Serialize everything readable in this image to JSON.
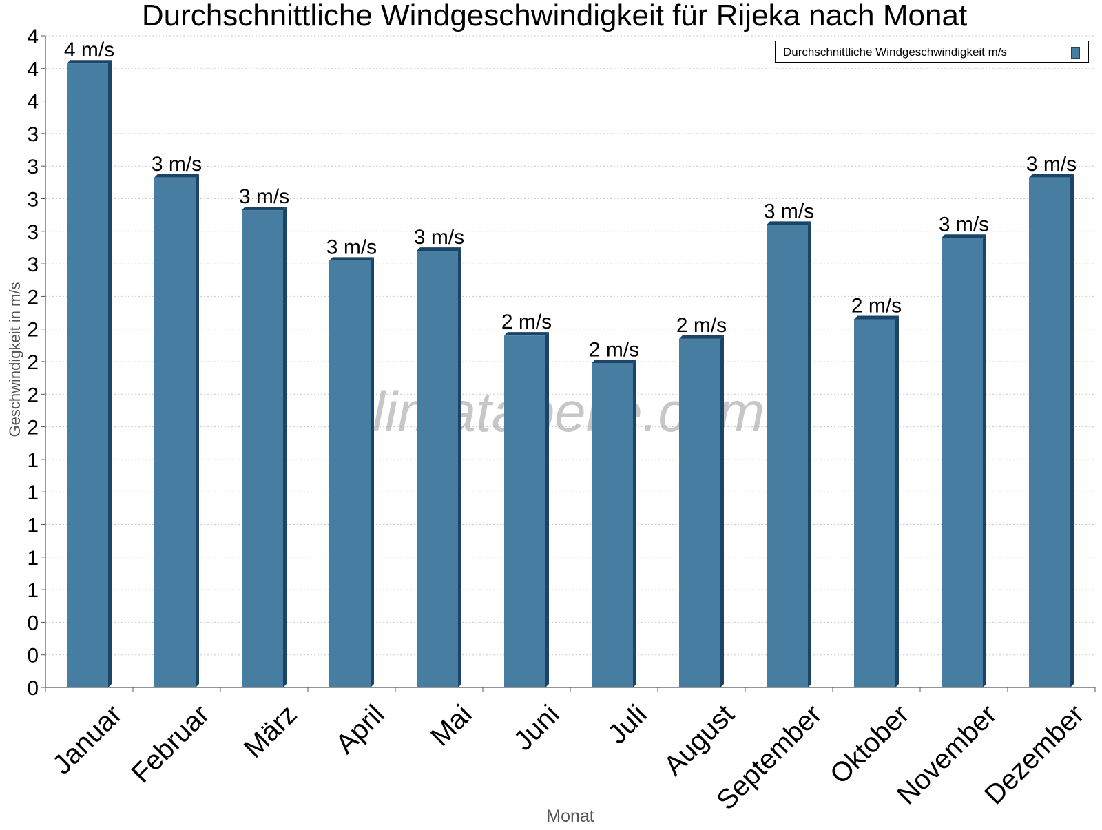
{
  "chart_data": {
    "type": "bar",
    "title": "Durchschnittliche Windgeschwindigkeit für Rijeka nach Monat",
    "xlabel": "Monat",
    "ylabel": "Geschwindigkeit in m/s",
    "categories": [
      "Januar",
      "Februar",
      "März",
      "April",
      "Mai",
      "Juni",
      "Juli",
      "August",
      "September",
      "Oktober",
      "November",
      "Dezember"
    ],
    "series": [
      {
        "name": "Durchschnittliche Windgeschwindigkeit m/s",
        "values": [
          3.83,
          3.13,
          2.93,
          2.62,
          2.68,
          2.16,
          1.99,
          2.14,
          2.84,
          2.26,
          2.76,
          3.13
        ],
        "data_labels": [
          "4 m/s",
          "3 m/s",
          "3 m/s",
          "3 m/s",
          "3 m/s",
          "2 m/s",
          "2 m/s",
          "2 m/s",
          "3 m/s",
          "2 m/s",
          "3 m/s",
          "3 m/s"
        ]
      }
    ],
    "yticks": [
      0,
      0.2,
      0.4,
      0.6,
      0.8,
      1.0,
      1.2,
      1.4,
      1.6,
      1.8,
      2.0,
      2.2,
      2.4,
      2.6,
      2.8,
      3.0,
      3.2,
      3.4,
      3.6,
      3.8,
      4.0
    ],
    "ytick_labels": [
      "0",
      "0",
      "0",
      "1",
      "1",
      "1",
      "1",
      "1",
      "2",
      "2",
      "2",
      "2",
      "2",
      "3",
      "3",
      "3",
      "3",
      "3",
      "4",
      "4",
      "4"
    ],
    "ylim": [
      0,
      4.0
    ],
    "grid": true,
    "legend_position": "top-right",
    "watermark": "klimatabelle.com",
    "colors": {
      "bar": "#467da0",
      "bar_edge": "#1b4566",
      "grid": "#c8c8c8",
      "axis_title": "#555555"
    }
  }
}
